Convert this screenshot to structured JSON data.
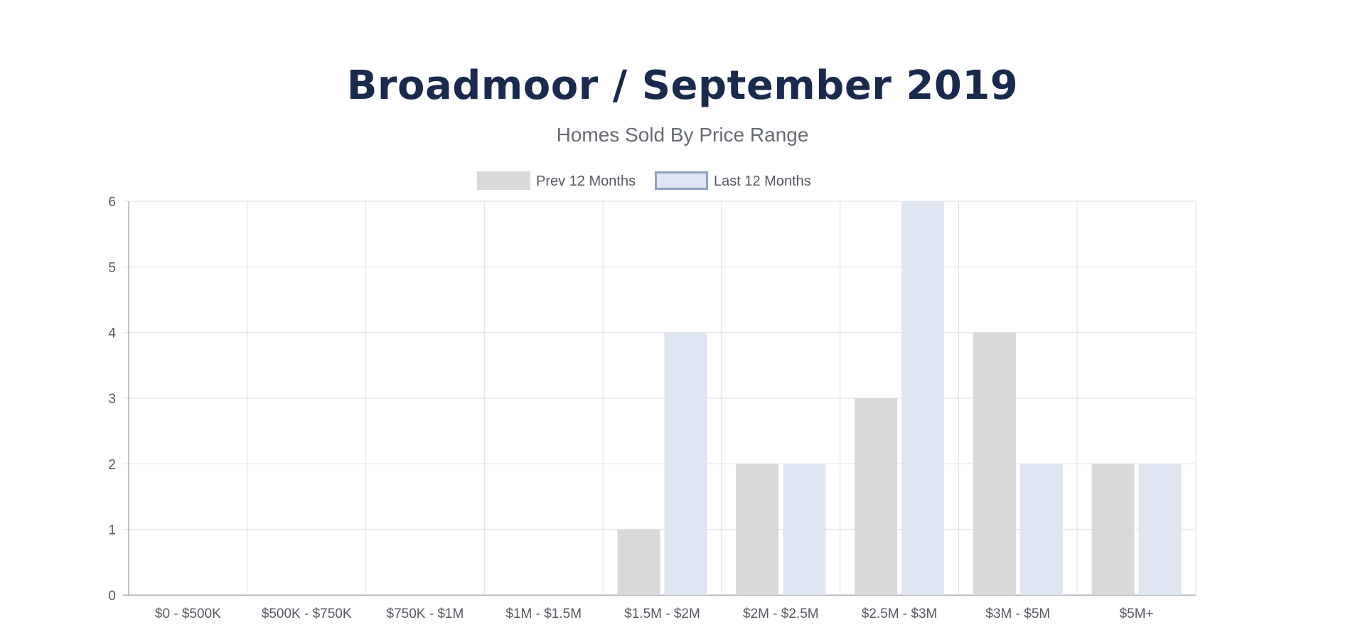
{
  "page_title": "Broadmoor / September 2019",
  "page_subtitle": "Homes Sold By Price Range",
  "chart_data": {
    "type": "bar",
    "title": "Broadmoor / September 2019",
    "subtitle": "Homes Sold By Price Range",
    "categories": [
      "$0 - $500K",
      "$500K - $750K",
      "$750K - $1M",
      "$1M - $1.5M",
      "$1.5M - $2M",
      "$2M - $2.5M",
      "$2.5M - $3M",
      "$3M - $5M",
      "$5M+"
    ],
    "series": [
      {
        "name": "Prev 12 Months",
        "values": [
          0,
          0,
          0,
          0,
          1,
          2,
          3,
          4,
          2
        ],
        "color": "#d9d9d9",
        "border": "#d9d9d9"
      },
      {
        "name": "Last 12 Months",
        "values": [
          0,
          0,
          0,
          0,
          4,
          2,
          6,
          2,
          2
        ],
        "color": "#dfe5f1",
        "border": "#8fa1c4"
      }
    ],
    "yticks": [
      0,
      1,
      2,
      3,
      4,
      5,
      6
    ],
    "ylim": [
      0,
      6
    ],
    "xlabel": "",
    "ylabel": "",
    "grid": true,
    "legend": "top-center"
  }
}
